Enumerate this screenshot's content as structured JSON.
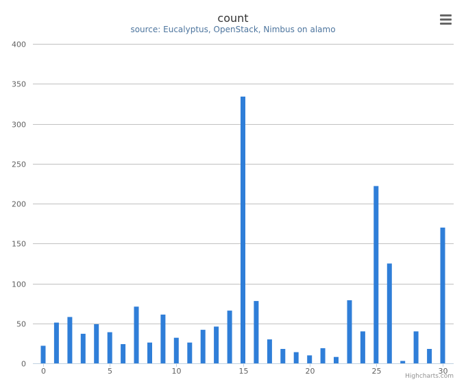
{
  "header": {
    "title": "count",
    "subtitle": "source: Eucalyptus, OpenStack, Nimbus on alamo"
  },
  "menu": {
    "icon": "hamburger-menu-icon"
  },
  "credits": {
    "label": "Highcharts.com"
  },
  "colors": {
    "bar": "#2f7ed8",
    "grid": "#c0c0c0",
    "axis": "#c0d0e0"
  },
  "chart_data": {
    "type": "bar",
    "title": "count",
    "subtitle": "source: Eucalyptus, OpenStack, Nimbus on alamo",
    "xlabel": "",
    "ylabel": "",
    "x": [
      0,
      1,
      2,
      3,
      4,
      5,
      6,
      7,
      8,
      9,
      10,
      11,
      12,
      13,
      14,
      15,
      16,
      17,
      18,
      19,
      20,
      21,
      22,
      23,
      24,
      25,
      26,
      27,
      28,
      29,
      30
    ],
    "values": [
      22,
      51,
      58,
      37,
      49,
      39,
      24,
      71,
      26,
      61,
      32,
      26,
      42,
      46,
      66,
      334,
      78,
      30,
      18,
      14,
      10,
      19,
      8,
      79,
      40,
      222,
      125,
      3,
      40,
      18,
      170
    ],
    "xlim": [
      0,
      30
    ],
    "ylim": [
      0,
      400
    ],
    "yticks": [
      "0",
      "50",
      "100",
      "150",
      "200",
      "250",
      "300",
      "350",
      "400"
    ],
    "xticks": [
      "0",
      "5",
      "10",
      "15",
      "20",
      "25",
      "30"
    ],
    "grid": true,
    "legend": false
  }
}
